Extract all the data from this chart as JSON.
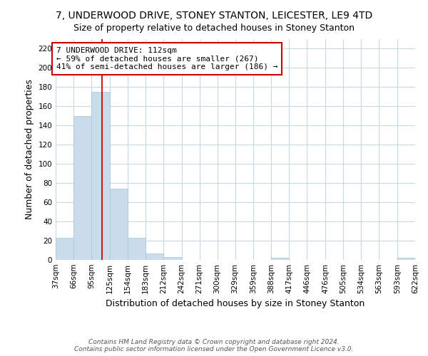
{
  "title_line1": "7, UNDERWOOD DRIVE, STONEY STANTON, LEICESTER, LE9 4TD",
  "title_line2": "Size of property relative to detached houses in Stoney Stanton",
  "xlabel": "Distribution of detached houses by size in Stoney Stanton",
  "ylabel": "Number of detached properties",
  "bar_edges": [
    37,
    66,
    95,
    125,
    154,
    183,
    212,
    242,
    271,
    300,
    329,
    359,
    388,
    417,
    446,
    476,
    505,
    534,
    563,
    593,
    622
  ],
  "bar_heights": [
    23,
    150,
    175,
    74,
    23,
    7,
    3,
    0,
    0,
    0,
    0,
    0,
    2,
    0,
    0,
    0,
    0,
    0,
    0,
    2
  ],
  "bar_color": "#c8dcea",
  "bar_edge_color": "#a8c4d8",
  "reference_line_x": 112,
  "ylim": [
    0,
    230
  ],
  "yticks": [
    0,
    20,
    40,
    60,
    80,
    100,
    120,
    140,
    160,
    180,
    200,
    220
  ],
  "annotation_box_text_line1": "7 UNDERWOOD DRIVE: 112sqm",
  "annotation_box_text_line2": "← 59% of detached houses are smaller (267)",
  "annotation_box_text_line3": "41% of semi-detached houses are larger (186) →",
  "ref_line_color": "#cc0000",
  "annotation_box_facecolor": "#ffffff",
  "annotation_box_edgecolor": "#cc0000",
  "grid_color": "#c8d8e8",
  "footer_line1": "Contains HM Land Registry data © Crown copyright and database right 2024.",
  "footer_line2": "Contains public sector information licensed under the Open Government Licence v3.0.",
  "background_color": "#ffffff",
  "title_fontsize": 10,
  "subtitle_fontsize": 9,
  "ylabel_fontsize": 9,
  "xlabel_fontsize": 9,
  "tick_fontsize": 7.5,
  "footer_fontsize": 6.5,
  "annot_fontsize": 8
}
